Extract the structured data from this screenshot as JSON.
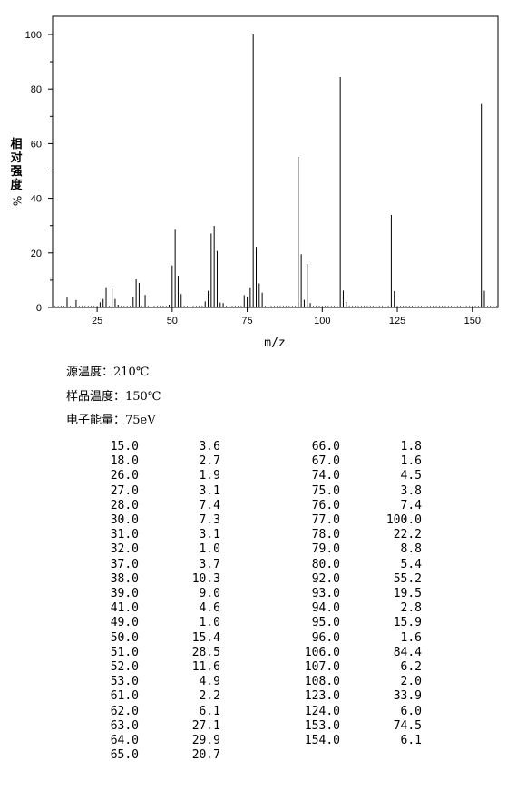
{
  "chart_data": {
    "type": "bar",
    "xlabel": "m/z",
    "ylabel": "相对强度",
    "ylabel_unit": "%",
    "xlim": [
      10,
      162
    ],
    "ylim": [
      0,
      105
    ],
    "xticks": [
      25,
      50,
      75,
      100,
      125,
      150
    ],
    "yticks": [
      0,
      20,
      40,
      60,
      80,
      100
    ],
    "grid": false,
    "peaks": [
      [
        15.0,
        3.6
      ],
      [
        18.0,
        2.7
      ],
      [
        26.0,
        1.9
      ],
      [
        27.0,
        3.1
      ],
      [
        28.0,
        7.4
      ],
      [
        30.0,
        7.3
      ],
      [
        31.0,
        3.1
      ],
      [
        32.0,
        1.0
      ],
      [
        37.0,
        3.7
      ],
      [
        38.0,
        10.3
      ],
      [
        39.0,
        9.0
      ],
      [
        41.0,
        4.6
      ],
      [
        49.0,
        1.0
      ],
      [
        50.0,
        15.4
      ],
      [
        51.0,
        28.5
      ],
      [
        52.0,
        11.6
      ],
      [
        53.0,
        4.9
      ],
      [
        61.0,
        2.2
      ],
      [
        62.0,
        6.1
      ],
      [
        63.0,
        27.1
      ],
      [
        64.0,
        29.9
      ],
      [
        65.0,
        20.7
      ],
      [
        66.0,
        1.8
      ],
      [
        67.0,
        1.6
      ],
      [
        74.0,
        4.5
      ],
      [
        75.0,
        3.8
      ],
      [
        76.0,
        7.4
      ],
      [
        77.0,
        100.0
      ],
      [
        78.0,
        22.2
      ],
      [
        79.0,
        8.8
      ],
      [
        80.0,
        5.4
      ],
      [
        92.0,
        55.2
      ],
      [
        93.0,
        19.5
      ],
      [
        94.0,
        2.8
      ],
      [
        95.0,
        15.9
      ],
      [
        96.0,
        1.6
      ],
      [
        106.0,
        84.4
      ],
      [
        107.0,
        6.2
      ],
      [
        108.0,
        2.0
      ],
      [
        123.0,
        33.9
      ],
      [
        124.0,
        6.0
      ],
      [
        153.0,
        74.5
      ],
      [
        154.0,
        6.1
      ]
    ]
  },
  "conditions": [
    "源温度：210℃",
    "样品温度：150℃",
    "电子能量：75eV"
  ],
  "table": {
    "left": [
      [
        "15.0",
        "3.6"
      ],
      [
        "18.0",
        "2.7"
      ],
      [
        "26.0",
        "1.9"
      ],
      [
        "27.0",
        "3.1"
      ],
      [
        "28.0",
        "7.4"
      ],
      [
        "30.0",
        "7.3"
      ],
      [
        "31.0",
        "3.1"
      ],
      [
        "32.0",
        "1.0"
      ],
      [
        "37.0",
        "3.7"
      ],
      [
        "38.0",
        "10.3"
      ],
      [
        "39.0",
        "9.0"
      ],
      [
        "41.0",
        "4.6"
      ],
      [
        "49.0",
        "1.0"
      ],
      [
        "50.0",
        "15.4"
      ],
      [
        "51.0",
        "28.5"
      ],
      [
        "52.0",
        "11.6"
      ],
      [
        "53.0",
        "4.9"
      ],
      [
        "61.0",
        "2.2"
      ],
      [
        "62.0",
        "6.1"
      ],
      [
        "63.0",
        "27.1"
      ],
      [
        "64.0",
        "29.9"
      ],
      [
        "65.0",
        "20.7"
      ]
    ],
    "right": [
      [
        "66.0",
        "1.8"
      ],
      [
        "67.0",
        "1.6"
      ],
      [
        "74.0",
        "4.5"
      ],
      [
        "75.0",
        "3.8"
      ],
      [
        "76.0",
        "7.4"
      ],
      [
        "77.0",
        "100.0"
      ],
      [
        "78.0",
        "22.2"
      ],
      [
        "79.0",
        "8.8"
      ],
      [
        "80.0",
        "5.4"
      ],
      [
        "92.0",
        "55.2"
      ],
      [
        "93.0",
        "19.5"
      ],
      [
        "94.0",
        "2.8"
      ],
      [
        "95.0",
        "15.9"
      ],
      [
        "96.0",
        "1.6"
      ],
      [
        "106.0",
        "84.4"
      ],
      [
        "107.0",
        "6.2"
      ],
      [
        "108.0",
        "2.0"
      ],
      [
        "123.0",
        "33.9"
      ],
      [
        "124.0",
        "6.0"
      ],
      [
        "153.0",
        "74.5"
      ],
      [
        "154.0",
        "6.1"
      ]
    ]
  }
}
